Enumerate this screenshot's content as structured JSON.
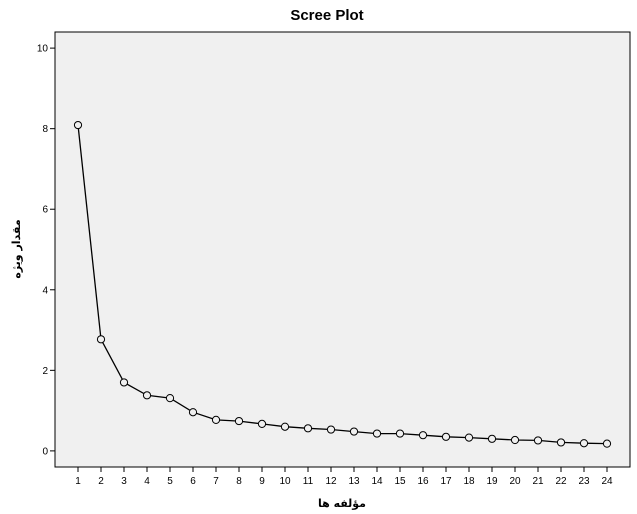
{
  "chart_data": {
    "type": "line",
    "title": "Scree Plot",
    "xlabel": "مؤلفه ها",
    "ylabel": "مقدار ویژه",
    "x": [
      1,
      2,
      3,
      4,
      5,
      6,
      7,
      8,
      9,
      10,
      11,
      12,
      13,
      14,
      15,
      16,
      17,
      18,
      19,
      20,
      21,
      22,
      23,
      24
    ],
    "series": [
      {
        "values": [
          8.09,
          2.77,
          1.7,
          1.38,
          1.31,
          0.96,
          0.77,
          0.74,
          0.67,
          0.6,
          0.56,
          0.53,
          0.48,
          0.43,
          0.43,
          0.39,
          0.35,
          0.33,
          0.3,
          0.27,
          0.26,
          0.21,
          0.19,
          0.18
        ]
      }
    ],
    "xlim": [
      0,
      25
    ],
    "ylim": [
      -0.4,
      10.4
    ],
    "yticks": [
      0,
      2,
      4,
      6,
      8,
      10
    ],
    "grid": false,
    "colors": {
      "plot_background": "#f0f0f0",
      "line": "#000000",
      "marker_fill": "#f0f0f0"
    }
  }
}
